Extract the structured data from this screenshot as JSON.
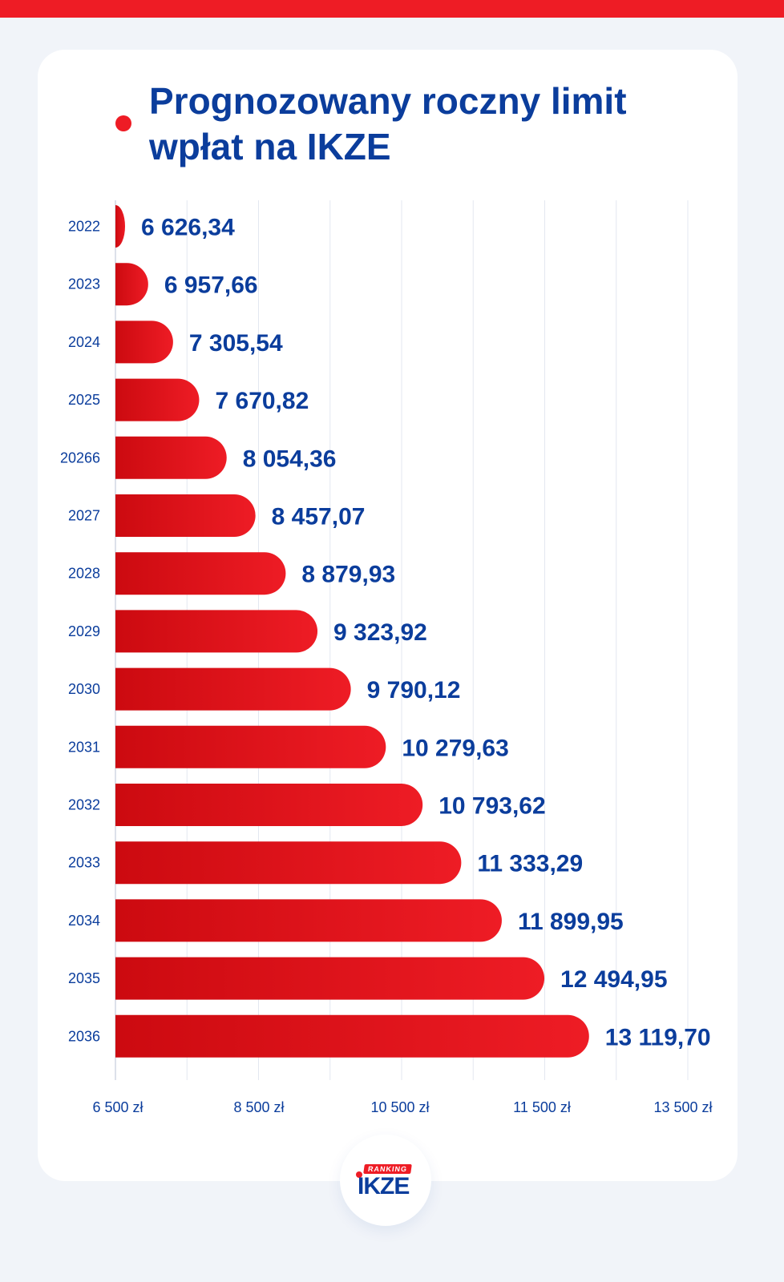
{
  "header": {
    "title": "Prognozowany roczny limit\nwpłat na IKZE"
  },
  "chart_data": {
    "type": "bar",
    "orientation": "horizontal",
    "categories": [
      "2022",
      "2023",
      "2024",
      "2025",
      "20266",
      "2027",
      "2028",
      "2029",
      "2030",
      "2031",
      "2032",
      "2033",
      "2034",
      "2035",
      "2036"
    ],
    "values": [
      6626.34,
      6957.66,
      7305.54,
      7670.82,
      8054.36,
      8457.07,
      8879.93,
      9323.92,
      9790.12,
      10279.63,
      10793.62,
      11333.29,
      11899.95,
      12494.95,
      13119.7
    ],
    "value_labels": [
      "6 626,34",
      "6 957,66",
      "7 305,54",
      "7 670,82",
      "8 054,36",
      "8 457,07",
      "8 879,93",
      "9 323,92",
      "9 790,12",
      "10 279,63",
      "10 793,62",
      "11 333,29",
      "11 899,95",
      "12 494,95",
      "13 119,70"
    ],
    "x_tick_labels": [
      "6 500 zł",
      "8 500 zł",
      "10 500 zł",
      "11 500 zł",
      "13 500 zł"
    ],
    "xlim": [
      6500,
      14500
    ],
    "grid": true,
    "colors": {
      "bar": "#ee1c25",
      "bar_dark": "#cc0a10",
      "label": "#0b3d9c",
      "grid": "#e3e7f0"
    }
  },
  "logo": {
    "ribbon": "RANKING",
    "mark": "IKZE"
  }
}
